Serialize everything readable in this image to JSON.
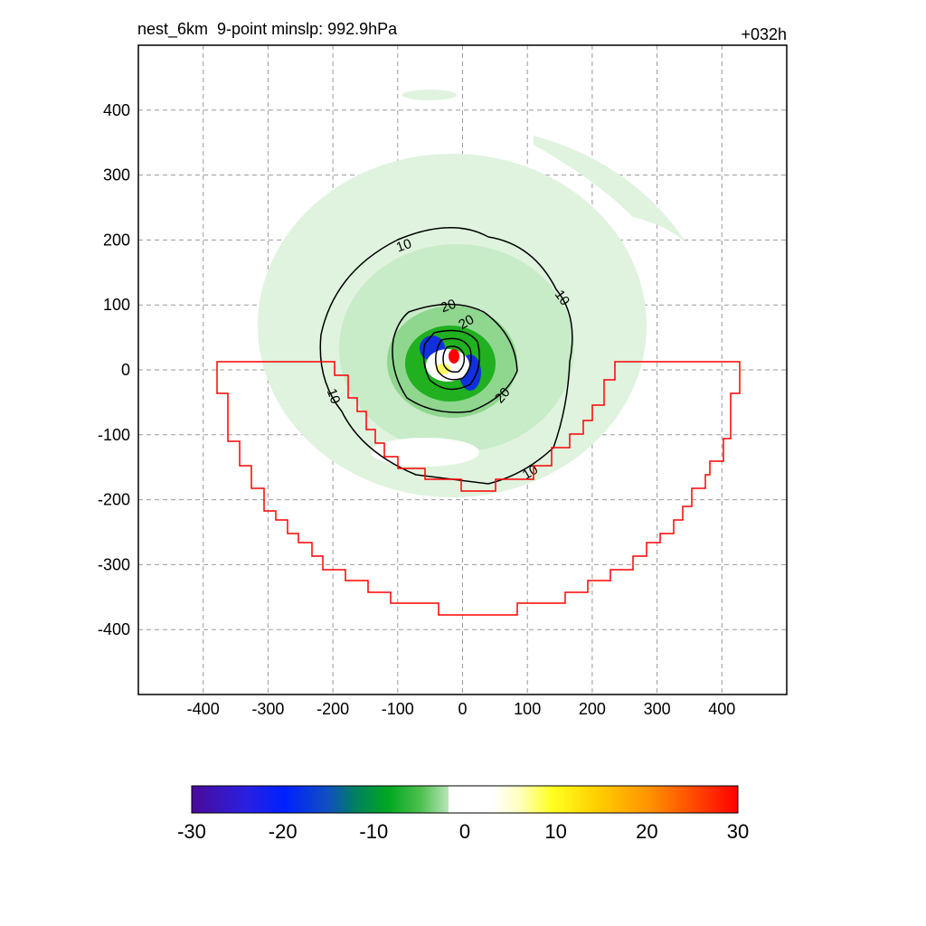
{
  "header": {
    "title_left": "nest_6km  9-point minslp: 992.9hPa",
    "title_right": "+032h"
  },
  "chart_data": {
    "type": "heatmap",
    "xlim": [
      -500,
      500
    ],
    "ylim": [
      -500,
      500
    ],
    "x_ticks": [
      "-400",
      "-300",
      "-200",
      "-100",
      "0",
      "100",
      "200",
      "300",
      "400"
    ],
    "y_ticks": [
      "400",
      "300",
      "200",
      "100",
      "0",
      "-100",
      "-200",
      "-300",
      "-400"
    ],
    "grid": true,
    "grid_style": "dashed",
    "contour_labels": [
      "10",
      "10",
      "10",
      "10",
      "20",
      "20",
      "20"
    ],
    "colorbar": {
      "ticks": [
        "-30",
        "-20",
        "-10",
        "0",
        "10",
        "20",
        "30"
      ],
      "range": [
        -30,
        30
      ],
      "placement": "bottom"
    },
    "colors": {
      "boundary": "#ff0000",
      "contour": "#000000",
      "grid": "#9a9a9a",
      "field_light_green": "#dff3df",
      "field_green": "#20b020",
      "field_blue": "#1030e0",
      "field_yellow": "#ffff60",
      "field_red": "#ff0000"
    }
  }
}
